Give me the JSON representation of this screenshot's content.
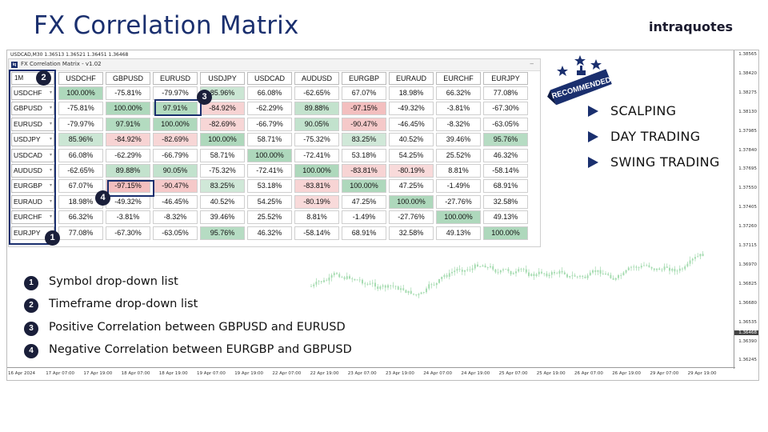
{
  "title": "FX Correlation Matrix",
  "brand": "intraquotes",
  "chart": {
    "header": "USDCAD,M30  1.36513 1.36521 1.36451 1.36468",
    "prices": [
      "1.38565",
      "1.38420",
      "1.38275",
      "1.38130",
      "1.37985",
      "1.37840",
      "1.37695",
      "1.37550",
      "1.37405",
      "1.37260",
      "1.37115",
      "1.36970",
      "1.36825",
      "1.36680",
      "1.36535",
      "1.36390",
      "1.36245"
    ],
    "current_price": "1.36468",
    "times": [
      "16 Apr 2024",
      "17 Apr 07:00",
      "17 Apr 19:00",
      "18 Apr 07:00",
      "18 Apr 19:00",
      "19 Apr 07:00",
      "19 Apr 19:00",
      "22 Apr 07:00",
      "22 Apr 19:00",
      "23 Apr 07:00",
      "23 Apr 19:00",
      "24 Apr 07:00",
      "24 Apr 19:00",
      "25 Apr 07:00",
      "25 Apr 19:00",
      "26 Apr 07:00",
      "26 Apr 19:00",
      "29 Apr 07:00",
      "29 Apr 19:00"
    ]
  },
  "panel": {
    "title": "FX Correlation Matrix - v1.02",
    "logo": "iq",
    "minimize": "–"
  },
  "matrix": {
    "timeframe": "1M",
    "columns": [
      "USDCHF",
      "GBPUSD",
      "EURUSD",
      "USDJPY",
      "USDCAD",
      "AUDUSD",
      "EURGBP",
      "EURAUD",
      "EURCHF",
      "EURJPY"
    ],
    "rows": [
      {
        "symbol": "USDCHF",
        "values": [
          "100.00%",
          "-75.81%",
          "-79.97%",
          "85.96%",
          "66.08%",
          "-62.65%",
          "67.07%",
          "18.98%",
          "66.32%",
          "77.08%"
        ]
      },
      {
        "symbol": "GBPUSD",
        "values": [
          "-75.81%",
          "100.00%",
          "97.91%",
          "-84.92%",
          "-62.29%",
          "89.88%",
          "-97.15%",
          "-49.32%",
          "-3.81%",
          "-67.30%"
        ]
      },
      {
        "symbol": "EURUSD",
        "values": [
          "-79.97%",
          "97.91%",
          "100.00%",
          "-82.69%",
          "-66.79%",
          "90.05%",
          "-90.47%",
          "-46.45%",
          "-8.32%",
          "-63.05%"
        ]
      },
      {
        "symbol": "USDJPY",
        "values": [
          "85.96%",
          "-84.92%",
          "-82.69%",
          "100.00%",
          "58.71%",
          "-75.32%",
          "83.25%",
          "40.52%",
          "39.46%",
          "95.76%"
        ]
      },
      {
        "symbol": "USDCAD",
        "values": [
          "66.08%",
          "-62.29%",
          "-66.79%",
          "58.71%",
          "100.00%",
          "-72.41%",
          "53.18%",
          "54.25%",
          "25.52%",
          "46.32%"
        ]
      },
      {
        "symbol": "AUDUSD",
        "values": [
          "-62.65%",
          "89.88%",
          "90.05%",
          "-75.32%",
          "-72.41%",
          "100.00%",
          "-83.81%",
          "-80.19%",
          "8.81%",
          "-58.14%"
        ]
      },
      {
        "symbol": "EURGBP",
        "values": [
          "67.07%",
          "-97.15%",
          "-90.47%",
          "83.25%",
          "53.18%",
          "-83.81%",
          "100.00%",
          "47.25%",
          "-1.49%",
          "68.91%"
        ]
      },
      {
        "symbol": "EURAUD",
        "values": [
          "18.98%",
          "-49.32%",
          "-46.45%",
          "40.52%",
          "54.25%",
          "-80.19%",
          "47.25%",
          "100.00%",
          "-27.76%",
          "32.58%"
        ]
      },
      {
        "symbol": "EURCHF",
        "values": [
          "66.32%",
          "-3.81%",
          "-8.32%",
          "39.46%",
          "25.52%",
          "8.81%",
          "-1.49%",
          "-27.76%",
          "100.00%",
          "49.13%"
        ]
      },
      {
        "symbol": "EURJPY",
        "values": [
          "77.08%",
          "-67.30%",
          "-63.05%",
          "95.76%",
          "46.32%",
          "-58.14%",
          "68.91%",
          "32.58%",
          "49.13%",
          "100.00%"
        ]
      }
    ]
  },
  "badges": [
    "1",
    "2",
    "3",
    "4"
  ],
  "legend": [
    {
      "num": "1",
      "text": "Symbol drop-down list"
    },
    {
      "num": "2",
      "text": "Timeframe drop-down list"
    },
    {
      "num": "3",
      "text": "Positive Correlation between GBPUSD and EURUSD"
    },
    {
      "num": "4",
      "text": "Negative Correlation between EURGBP and GBPUSD"
    }
  ],
  "recommended": "RECOMMENDED",
  "features": [
    "SCALPING",
    "DAY TRADING",
    "SWING TRADING"
  ],
  "colors": {
    "accent": "#1a2f6e",
    "positive": "#b9dfc6",
    "negative": "#f2c2c2",
    "badge": "#1a1f3a"
  }
}
